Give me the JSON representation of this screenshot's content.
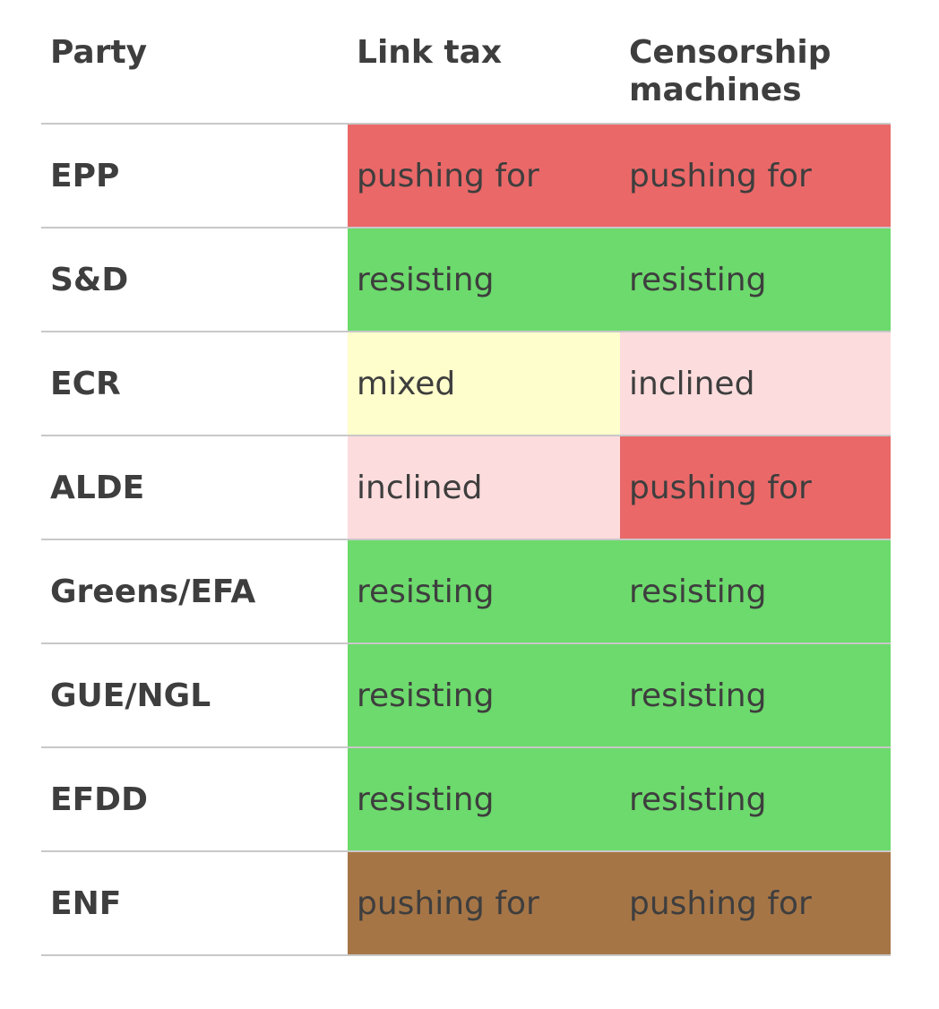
{
  "header": {
    "party": "Party",
    "link_tax": "Link tax",
    "censorship": "Censorship machines"
  },
  "colors": {
    "pushing for": "#ea6868",
    "resisting": "#6cda6c",
    "mixed": "#fefdcc",
    "inclined": "#fcdcdd",
    "pushing for (ENF)": "#a67546"
  },
  "rows": [
    {
      "party": "EPP",
      "link_tax": "pushing for",
      "censorship": "pushing for",
      "link_color": "#ea6868",
      "cens_color": "#ea6868"
    },
    {
      "party": "S&D",
      "link_tax": "resisting",
      "censorship": "resisting",
      "link_color": "#6cda6c",
      "cens_color": "#6cda6c"
    },
    {
      "party": "ECR",
      "link_tax": "mixed",
      "censorship": "inclined",
      "link_color": "#fefdcc",
      "cens_color": "#fcdcdd"
    },
    {
      "party": "ALDE",
      "link_tax": "inclined",
      "censorship": "pushing for",
      "link_color": "#fcdcdd",
      "cens_color": "#ea6868"
    },
    {
      "party": "Greens/EFA",
      "link_tax": "resisting",
      "censorship": "resisting",
      "link_color": "#6cda6c",
      "cens_color": "#6cda6c"
    },
    {
      "party": "GUE/NGL",
      "link_tax": "resisting",
      "censorship": "resisting",
      "link_color": "#6cda6c",
      "cens_color": "#6cda6c"
    },
    {
      "party": "EFDD",
      "link_tax": "resisting",
      "censorship": "resisting",
      "link_color": "#6cda6c",
      "cens_color": "#6cda6c"
    },
    {
      "party": "ENF",
      "link_tax": "pushing for",
      "censorship": "pushing for",
      "link_color": "#a67546",
      "cens_color": "#a67546"
    }
  ]
}
